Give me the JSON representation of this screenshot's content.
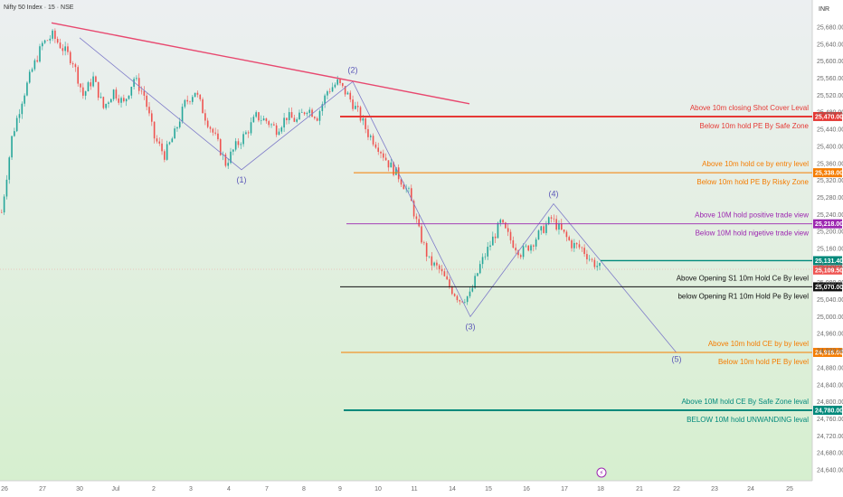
{
  "header": {
    "title": "Nifty 50 Index · 15 · NSE",
    "currency": "INR"
  },
  "colors": {
    "up": "#26a69a",
    "down": "#ef5350",
    "trendline": "#e8486f",
    "wave": "#7e7bc9",
    "wave_label": "#5b57b8",
    "bg_top": "#eceff1",
    "bg_bottom": "#d6efcf"
  },
  "chart_data": {
    "type": "candlestick",
    "ylim": [
      24620,
      25710
    ],
    "yticks": [
      "25,680.00",
      "25,640.00",
      "25,600.00",
      "25,560.00",
      "25,520.00",
      "25,480.00",
      "25,440.00",
      "25,400.00",
      "25,360.00",
      "25,320.00",
      "25,280.00",
      "25,240.00",
      "25,200.00",
      "25,160.00",
      "25,120.00",
      "25,080.00",
      "25,040.00",
      "25,000.00",
      "24,960.00",
      "24,920.00",
      "24,880.00",
      "24,840.00",
      "24,800.00",
      "24,760.00",
      "24,720.00",
      "24,680.00",
      "24,640.00"
    ],
    "xticks": [
      "26",
      "27",
      "30",
      "Jul",
      "2",
      "3",
      "4",
      "7",
      "8",
      "9",
      "10",
      "11",
      "14",
      "15",
      "16",
      "17",
      "18",
      "21",
      "22",
      "23",
      "24",
      "25"
    ],
    "close_path": [
      [
        0,
        25245
      ],
      [
        4,
        25420
      ],
      [
        8,
        25510
      ],
      [
        12,
        25580
      ],
      [
        16,
        25640
      ],
      [
        20,
        25660
      ],
      [
        24,
        25630
      ],
      [
        28,
        25600
      ],
      [
        32,
        25520
      ],
      [
        36,
        25560
      ],
      [
        40,
        25490
      ],
      [
        44,
        25530
      ],
      [
        48,
        25500
      ],
      [
        52,
        25560
      ],
      [
        56,
        25520
      ],
      [
        60,
        25420
      ],
      [
        64,
        25380
      ],
      [
        68,
        25430
      ],
      [
        72,
        25500
      ],
      [
        76,
        25530
      ],
      [
        80,
        25470
      ],
      [
        84,
        25420
      ],
      [
        88,
        25360
      ],
      [
        92,
        25400
      ],
      [
        96,
        25430
      ],
      [
        100,
        25470
      ],
      [
        104,
        25460
      ],
      [
        108,
        25440
      ],
      [
        112,
        25470
      ],
      [
        116,
        25460
      ],
      [
        120,
        25490
      ],
      [
        124,
        25470
      ],
      [
        128,
        25530
      ],
      [
        132,
        25550
      ],
      [
        136,
        25520
      ],
      [
        140,
        25480
      ],
      [
        144,
        25430
      ],
      [
        148,
        25400
      ],
      [
        152,
        25360
      ],
      [
        156,
        25330
      ],
      [
        160,
        25290
      ],
      [
        164,
        25200
      ],
      [
        168,
        25130
      ],
      [
        172,
        25110
      ],
      [
        176,
        25070
      ],
      [
        180,
        25040
      ],
      [
        184,
        25050
      ],
      [
        188,
        25120
      ],
      [
        192,
        25170
      ],
      [
        196,
        25220
      ],
      [
        200,
        25180
      ],
      [
        204,
        25150
      ],
      [
        208,
        25170
      ],
      [
        212,
        25200
      ],
      [
        216,
        25230
      ],
      [
        220,
        25200
      ],
      [
        224,
        25170
      ],
      [
        228,
        25160
      ],
      [
        232,
        25130
      ],
      [
        236,
        25110
      ]
    ],
    "trendline": [
      [
        57,
        25690
      ],
      [
        519,
        25500
      ]
    ],
    "wave_path": [
      {
        "label": "",
        "x": 88,
        "v": 25655
      },
      {
        "label": "(1)",
        "x": 267,
        "v": 25345
      },
      {
        "label": "(2)",
        "x": 390,
        "v": 25552
      },
      {
        "label": "(3)",
        "x": 520,
        "v": 25000
      },
      {
        "label": "(4)",
        "x": 612,
        "v": 25265
      },
      {
        "label": "(5)",
        "x": 748,
        "v": 24915
      }
    ],
    "levels": [
      {
        "price": 25470.0,
        "tag": "25,470.00",
        "above": "Above 10m closing Shot Cover Leval",
        "below": "Below 10m hold PE By Safe Zone",
        "color": "#e53935",
        "x1": 376
      },
      {
        "price": 25338.0,
        "tag": "25,338.00",
        "above": "Above 10m hold ce by entry level",
        "below": "Below 10m hold PE By Risky Zone",
        "color": "#f57c00",
        "x1": 391
      },
      {
        "price": 25218.0,
        "tag": "25,218.00",
        "above": "Above 10M hold positive trade view",
        "below": "Below 10M hold nigetive trade view",
        "color": "#9c27b0",
        "x1": 383
      },
      {
        "price": 25070.0,
        "tag": "25,070.00",
        "above": "Above Opening S1 10m Hold Ce By level",
        "below": "below Opening R1 10m Hold Pe By level",
        "color": "#111111",
        "x1": 376
      },
      {
        "price": 24916.0,
        "tag": "24,916.00",
        "above": "Above 10m hold CE by by level",
        "below": "Below 10m hold PE By level",
        "color": "#f57c00",
        "x1": 377
      },
      {
        "price": 24780.0,
        "tag": "24,780.00",
        "above": "Above 10M hold CE By Safe Zone leval",
        "below": "BELOW 10M hold UNWANDING leval",
        "color": "#00897b",
        "x1": 380
      }
    ],
    "price_tags": [
      {
        "price": 25131.4,
        "tag": "25,131.40",
        "color": "#00897b"
      },
      {
        "price": 25109.5,
        "tag": "25,109.50",
        "color": "#ef5350"
      }
    ]
  }
}
